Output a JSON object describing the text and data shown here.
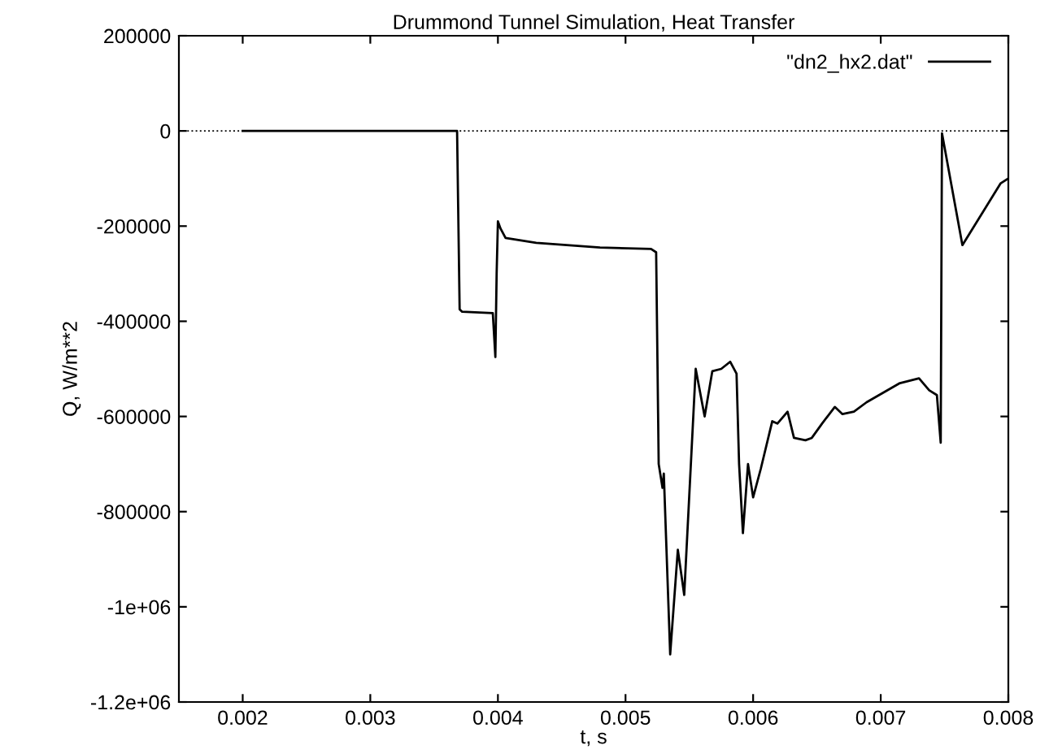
{
  "chart_data": {
    "type": "line",
    "title": "Drummond Tunnel Simulation, Heat Transfer",
    "xlabel": "t, s",
    "ylabel": "Q, W/m**2",
    "series": [
      {
        "name": "\"dn2_hx2.dat\"",
        "color": "#000000",
        "x": [
          0.002,
          0.00368,
          0.0037,
          0.00372,
          0.00396,
          0.00398,
          0.00399,
          0.004,
          0.00402,
          0.00406,
          0.0043,
          0.0048,
          0.0052,
          0.00524,
          0.00526,
          0.00529,
          0.0053,
          0.00535,
          0.00541,
          0.00546,
          0.00555,
          0.00562,
          0.00568,
          0.00575,
          0.00582,
          0.00587,
          0.00589,
          0.00592,
          0.00596,
          0.006,
          0.00606,
          0.00615,
          0.00619,
          0.00627,
          0.00632,
          0.00641,
          0.00646,
          0.00654,
          0.00664,
          0.0067,
          0.00679,
          0.00689,
          0.00715,
          0.0073,
          0.00738,
          0.00744,
          0.00747,
          0.00748,
          0.00764,
          0.00794,
          0.008
        ],
        "values": [
          0,
          0,
          -375000,
          -380000,
          -383000,
          -475000,
          -300000,
          -190000,
          -205000,
          -225000,
          -235000,
          -245000,
          -248000,
          -255000,
          -700000,
          -750000,
          -720000,
          -1100000,
          -880000,
          -975000,
          -500000,
          -600000,
          -505000,
          -500000,
          -485000,
          -510000,
          -700000,
          -845000,
          -700000,
          -770000,
          -710000,
          -610000,
          -615000,
          -590000,
          -645000,
          -650000,
          -645000,
          -615000,
          -580000,
          -595000,
          -590000,
          -570000,
          -530000,
          -520000,
          -545000,
          -555000,
          -655000,
          -5000,
          -240000,
          -110000,
          -100000
        ]
      }
    ],
    "xlim": [
      0.0015,
      0.008
    ],
    "ylim": [
      -1200000,
      200000
    ],
    "xticks": [
      0.002,
      0.003,
      0.004,
      0.005,
      0.006,
      0.007,
      0.008
    ],
    "yticks": [
      {
        "value": -1200000,
        "label": "-1.2e+06"
      },
      {
        "value": -1000000,
        "label": "-1e+06"
      },
      -800000,
      -600000,
      -400000,
      -200000,
      0,
      200000
    ],
    "ref_lines": [
      {
        "axis": "y",
        "value": 0,
        "line_style": "dotted",
        "color": "#000000"
      }
    ],
    "legend": "top right",
    "grid": false,
    "marker": "none",
    "line_style": "solid"
  }
}
